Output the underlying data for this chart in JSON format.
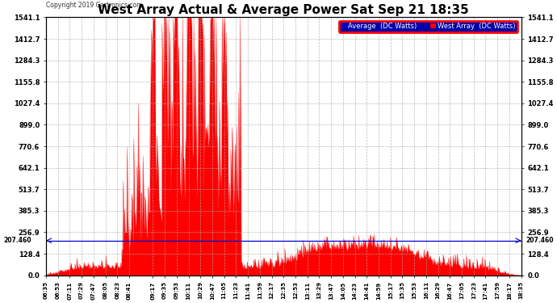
{
  "title": "West Array Actual & Average Power Sat Sep 21 18:35",
  "copyright": "Copyright 2019 Cartronics.com",
  "legend_labels": [
    "Average  (DC Watts)",
    "West Array  (DC Watts)"
  ],
  "legend_colors": [
    "#0000ff",
    "#ff0000"
  ],
  "ylim": [
    0.0,
    1541.1
  ],
  "yticks": [
    0.0,
    128.4,
    256.9,
    385.3,
    513.7,
    642.1,
    770.6,
    899.0,
    1027.4,
    1155.8,
    1284.3,
    1412.7,
    1541.1
  ],
  "hline_value": 207.46,
  "hline_label": "207.460",
  "background_color": "#ffffff",
  "plot_background": "#ffffff",
  "grid_color": "#aaaaaa",
  "title_fontsize": 11,
  "xtick_labels": [
    "06:35",
    "06:53",
    "07:11",
    "07:29",
    "07:47",
    "08:05",
    "08:23",
    "08:41",
    "09:17",
    "09:35",
    "09:53",
    "10:11",
    "10:29",
    "10:47",
    "11:05",
    "11:23",
    "11:41",
    "11:59",
    "12:17",
    "12:35",
    "12:53",
    "13:11",
    "13:29",
    "13:47",
    "14:05",
    "14:23",
    "14:41",
    "14:59",
    "15:17",
    "15:35",
    "15:53",
    "16:11",
    "16:29",
    "16:47",
    "17:05",
    "17:23",
    "17:41",
    "17:59",
    "18:17",
    "18:35"
  ]
}
